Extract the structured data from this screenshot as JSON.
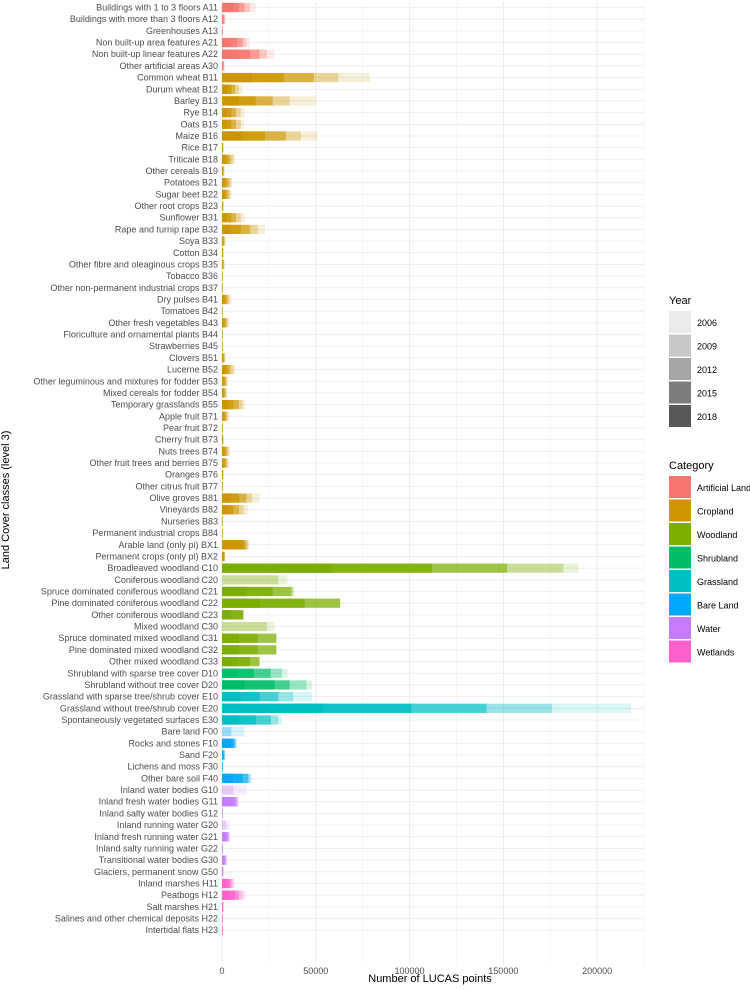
{
  "chart_data": {
    "type": "bar",
    "orientation": "horizontal",
    "stacking": "overlaid by year (cumulative)",
    "xlabel": "Number of LUCAS points",
    "ylabel": "Land Cover classes (level 3)",
    "xlim": [
      0,
      225000
    ],
    "xticks": [
      0,
      50000,
      100000,
      150000,
      200000
    ],
    "xtick_labels": [
      "0",
      "50000",
      "100000",
      "150000",
      "200000"
    ],
    "grid": true,
    "years": [
      "2006",
      "2009",
      "2012",
      "2015",
      "2018"
    ],
    "year_alphas": [
      0.15,
      0.3,
      0.55,
      0.75,
      1.0
    ],
    "legend_year_title": "Year",
    "legend_year_greys": [
      "#ebebeb",
      "#c8c8c8",
      "#a5a5a5",
      "#7c7c7c",
      "#595959"
    ],
    "legend_category_title": "Category",
    "categories_legend": [
      {
        "name": "Artificial Land",
        "color": "#F8766D"
      },
      {
        "name": "Cropland",
        "color": "#CD9600"
      },
      {
        "name": "Woodland",
        "color": "#7CAE00"
      },
      {
        "name": "Shrubland",
        "color": "#00BE67"
      },
      {
        "name": "Grassland",
        "color": "#00BFC4"
      },
      {
        "name": "Bare Land",
        "color": "#00A9FF"
      },
      {
        "name": "Water",
        "color": "#C77CFF"
      },
      {
        "name": "Wetlands",
        "color": "#FF61CC"
      }
    ],
    "series_note": "values per class = cumulative bar end for years [2018, 2015, 2012, 2009, 2006]",
    "classes": [
      {
        "label": "Buildings with 1 to 3 floors A11",
        "cat": "Artificial Land",
        "values": [
          6000,
          9000,
          12000,
          15000,
          18000
        ]
      },
      {
        "label": "Buildings with more than 3 floors A12",
        "cat": "Artificial Land",
        "values": [
          400,
          800,
          1200,
          1600,
          2000
        ]
      },
      {
        "label": "Greenhouses A13",
        "cat": "Artificial Land",
        "values": [
          100,
          200,
          300,
          400,
          500
        ]
      },
      {
        "label": "Non built-up area features A21",
        "cat": "Artificial Land",
        "values": [
          5000,
          8000,
          11000,
          13000,
          15000
        ]
      },
      {
        "label": "Non built-up linear features A22",
        "cat": "Artificial Land",
        "values": [
          9000,
          15000,
          20000,
          24000,
          28000
        ]
      },
      {
        "label": "Other artificial areas A30",
        "cat": "Artificial Land",
        "values": [
          300,
          600,
          900,
          1200,
          1500
        ]
      },
      {
        "label": "Common wheat B11",
        "cat": "Cropland",
        "values": [
          16000,
          33000,
          49000,
          62000,
          79000
        ]
      },
      {
        "label": "Durum wheat B12",
        "cat": "Cropland",
        "values": [
          3000,
          5000,
          7000,
          9000,
          11000
        ]
      },
      {
        "label": "Barley B13",
        "cat": "Cropland",
        "values": [
          9000,
          18000,
          27000,
          36000,
          50000
        ]
      },
      {
        "label": "Rye B14",
        "cat": "Cropland",
        "values": [
          2500,
          5000,
          7500,
          10000,
          12000
        ]
      },
      {
        "label": "Oats B15",
        "cat": "Cropland",
        "values": [
          2500,
          5000,
          7500,
          10000,
          12000
        ]
      },
      {
        "label": "Maize B16",
        "cat": "Cropland",
        "values": [
          11000,
          23000,
          34000,
          42000,
          51000
        ]
      },
      {
        "label": "Rice B17",
        "cat": "Cropland",
        "values": [
          200,
          400,
          600,
          800,
          1000
        ]
      },
      {
        "label": "Triticale B18",
        "cat": "Cropland",
        "values": [
          1500,
          3000,
          4500,
          6000,
          7000
        ]
      },
      {
        "label": "Other cereals B19",
        "cat": "Cropland",
        "values": [
          300,
          600,
          900,
          1200,
          1500
        ]
      },
      {
        "label": "Potatoes B21",
        "cat": "Cropland",
        "values": [
          1200,
          2400,
          3600,
          4800,
          5500
        ]
      },
      {
        "label": "Sugar beet B22",
        "cat": "Cropland",
        "values": [
          1100,
          2200,
          3300,
          4400,
          5000
        ]
      },
      {
        "label": "Other root crops B23",
        "cat": "Cropland",
        "values": [
          200,
          400,
          600,
          800,
          1000
        ]
      },
      {
        "label": "Sunflower B31",
        "cat": "Cropland",
        "values": [
          2500,
          5000,
          7500,
          10000,
          12000
        ]
      },
      {
        "label": "Rape and turnip rape B32",
        "cat": "Cropland",
        "values": [
          5000,
          10000,
          15000,
          19000,
          23000
        ]
      },
      {
        "label": "Soya B33",
        "cat": "Cropland",
        "values": [
          400,
          800,
          1200,
          1600,
          2000
        ]
      },
      {
        "label": "Cotton B34",
        "cat": "Cropland",
        "values": [
          200,
          400,
          600,
          800,
          1000
        ]
      },
      {
        "label": "Other fibre and oleaginous crops B35",
        "cat": "Cropland",
        "values": [
          300,
          600,
          900,
          1200,
          1500
        ]
      },
      {
        "label": "Tobacco B36",
        "cat": "Cropland",
        "values": [
          50,
          100,
          150,
          200,
          250
        ]
      },
      {
        "label": "Other non-permanent industrial crops B37",
        "cat": "Cropland",
        "values": [
          80,
          160,
          240,
          320,
          400
        ]
      },
      {
        "label": "Dry pulses B41",
        "cat": "Cropland",
        "values": [
          1000,
          2000,
          3000,
          4000,
          5000
        ]
      },
      {
        "label": "Tomatoes B42",
        "cat": "Cropland",
        "values": [
          80,
          160,
          240,
          320,
          400
        ]
      },
      {
        "label": "Other fresh vegetables B43",
        "cat": "Cropland",
        "values": [
          800,
          1600,
          2400,
          3200,
          4000
        ]
      },
      {
        "label": "Floriculture and ornamental plants B44",
        "cat": "Cropland",
        "values": [
          40,
          80,
          120,
          160,
          200
        ]
      },
      {
        "label": "Strawberries B45",
        "cat": "Cropland",
        "values": [
          40,
          80,
          120,
          160,
          200
        ]
      },
      {
        "label": "Clovers B51",
        "cat": "Cropland",
        "values": [
          400,
          800,
          1200,
          1600,
          2000
        ]
      },
      {
        "label": "Lucerne B52",
        "cat": "Cropland",
        "values": [
          1500,
          3000,
          4500,
          6000,
          7000
        ]
      },
      {
        "label": "Other leguminous and mixtures for fodder B53",
        "cat": "Cropland",
        "values": [
          700,
          1400,
          2100,
          2800,
          3500
        ]
      },
      {
        "label": "Mixed cereals for fodder B54",
        "cat": "Cropland",
        "values": [
          600,
          1200,
          1800,
          2400,
          3000
        ]
      },
      {
        "label": "Temporary grasslands B55",
        "cat": "Cropland",
        "values": [
          3000,
          6000,
          9000,
          11000,
          12500
        ]
      },
      {
        "label": "Apple fruit B71",
        "cat": "Cropland",
        "values": [
          800,
          1600,
          2400,
          3200,
          4000
        ]
      },
      {
        "label": "Pear fruit B72",
        "cat": "Cropland",
        "values": [
          100,
          200,
          300,
          400,
          500
        ]
      },
      {
        "label": "Cherry fruit B73",
        "cat": "Cropland",
        "values": [
          200,
          400,
          600,
          800,
          1000
        ]
      },
      {
        "label": "Nuts trees B74",
        "cat": "Cropland",
        "values": [
          900,
          1800,
          2700,
          3600,
          4500
        ]
      },
      {
        "label": "Other fruit trees and berries B75",
        "cat": "Cropland",
        "values": [
          800,
          1600,
          2400,
          3200,
          4000
        ]
      },
      {
        "label": "Oranges B76",
        "cat": "Cropland",
        "values": [
          200,
          400,
          600,
          800,
          1000
        ]
      },
      {
        "label": "Other citrus fruit B77",
        "cat": "Cropland",
        "values": [
          80,
          160,
          240,
          320,
          400
        ]
      },
      {
        "label": "Olive groves B81",
        "cat": "Cropland",
        "values": [
          5000,
          9000,
          13000,
          16000,
          20000
        ]
      },
      {
        "label": "Vineyards B82",
        "cat": "Cropland",
        "values": [
          3000,
          6000,
          9000,
          11500,
          14000
        ]
      },
      {
        "label": "Nurseries B83",
        "cat": "Cropland",
        "values": [
          40,
          80,
          120,
          160,
          200
        ]
      },
      {
        "label": "Permanent industrial crops B84",
        "cat": "Cropland",
        "values": [
          40,
          80,
          120,
          160,
          200
        ]
      },
      {
        "label": "Arable land (only pi) BX1",
        "cat": "Cropland",
        "values": [
          11000,
          12000,
          13000,
          14000,
          14500
        ]
      },
      {
        "label": "Permanent crops (only pi) BX2",
        "cat": "Cropland",
        "values": [
          1000,
          1200,
          1400,
          1600,
          1800
        ]
      },
      {
        "label": "Broadleaved woodland C10",
        "cat": "Woodland",
        "values": [
          59000,
          112000,
          152000,
          182000,
          190000
        ]
      },
      {
        "label": "Coniferous woodland C20",
        "cat": "Woodland",
        "values": [
          0,
          0,
          0,
          30000,
          35000
        ]
      },
      {
        "label": "Spruce dominated coniferous woodland C21",
        "cat": "Woodland",
        "values": [
          13000,
          27000,
          37000,
          38000,
          38500
        ]
      },
      {
        "label": "Pine dominated coniferous woodland C22",
        "cat": "Woodland",
        "values": [
          20000,
          44000,
          63000,
          63000,
          63000
        ]
      },
      {
        "label": "Other coniferous woodland C23",
        "cat": "Woodland",
        "values": [
          5000,
          11000,
          11500,
          11500,
          11500
        ]
      },
      {
        "label": "Mixed woodland C30",
        "cat": "Woodland",
        "values": [
          0,
          0,
          0,
          24000,
          28000
        ]
      },
      {
        "label": "Spruce dominated mixed woodland C31",
        "cat": "Woodland",
        "values": [
          9000,
          19000,
          29000,
          29000,
          29000
        ]
      },
      {
        "label": "Pine dominated mixed woodland C32",
        "cat": "Woodland",
        "values": [
          9000,
          19000,
          29000,
          29000,
          29000
        ]
      },
      {
        "label": "Other mixed woodland C33",
        "cat": "Woodland",
        "values": [
          8000,
          15000,
          20000,
          20000,
          20000
        ]
      },
      {
        "label": "Shrubland with sparse tree cover D10",
        "cat": "Shrubland",
        "values": [
          8000,
          17000,
          26000,
          32000,
          35000
        ]
      },
      {
        "label": "Shrubland without tree cover D20",
        "cat": "Shrubland",
        "values": [
          12000,
          28000,
          36000,
          45000,
          48000
        ]
      },
      {
        "label": "Grassland with sparse tree/shrub cover E10",
        "cat": "Grassland",
        "values": [
          10000,
          20000,
          30000,
          38000,
          48000
        ]
      },
      {
        "label": "Grassland without tree/shrub cover E20",
        "cat": "Grassland",
        "values": [
          54000,
          101000,
          141000,
          176000,
          218000
        ]
      },
      {
        "label": "Spontaneously vegetated surfaces E30",
        "cat": "Grassland",
        "values": [
          9000,
          18000,
          26000,
          30000,
          32000
        ]
      },
      {
        "label": "Bare land F00",
        "cat": "Bare Land",
        "values": [
          0,
          0,
          0,
          5000,
          12000
        ]
      },
      {
        "label": "Rocks and stones F10",
        "cat": "Bare Land",
        "values": [
          5000,
          6000,
          7000,
          7500,
          8000
        ]
      },
      {
        "label": "Sand F20",
        "cat": "Bare Land",
        "values": [
          400,
          800,
          1200,
          1600,
          2000
        ]
      },
      {
        "label": "Lichens and moss F30",
        "cat": "Bare Land",
        "values": [
          100,
          200,
          300,
          400,
          500
        ]
      },
      {
        "label": "Other bare soil F40",
        "cat": "Bare Land",
        "values": [
          6000,
          11000,
          14000,
          15000,
          16000
        ]
      },
      {
        "label": "Inland water bodies G10",
        "cat": "Water",
        "values": [
          0,
          0,
          0,
          6000,
          13000
        ]
      },
      {
        "label": "Inland fresh water bodies G11",
        "cat": "Water",
        "values": [
          5000,
          7000,
          8000,
          8500,
          9000
        ]
      },
      {
        "label": "Inland salty water bodies G12",
        "cat": "Water",
        "values": [
          40,
          80,
          120,
          160,
          200
        ]
      },
      {
        "label": "Inland running water G20",
        "cat": "Water",
        "values": [
          0,
          0,
          0,
          2000,
          4000
        ]
      },
      {
        "label": "Inland fresh running water G21",
        "cat": "Water",
        "values": [
          2000,
          3000,
          3500,
          4000,
          4200
        ]
      },
      {
        "label": "Inland salty running water G22",
        "cat": "Water",
        "values": [
          20,
          40,
          60,
          80,
          100
        ]
      },
      {
        "label": "Transitional water bodies G30",
        "cat": "Water",
        "values": [
          1000,
          1500,
          2000,
          2500,
          3000
        ]
      },
      {
        "label": "Glaciers, permanent snow G50",
        "cat": "Water",
        "values": [
          200,
          400,
          600,
          800,
          1000
        ]
      },
      {
        "label": "Inland marshes H11",
        "cat": "Wetlands",
        "values": [
          2000,
          4000,
          5000,
          6000,
          7000
        ]
      },
      {
        "label": "Peatbogs H12",
        "cat": "Wetlands",
        "values": [
          4000,
          7000,
          9000,
          11000,
          12500
        ]
      },
      {
        "label": "Salt marshes H21",
        "cat": "Wetlands",
        "values": [
          200,
          400,
          600,
          800,
          1000
        ]
      },
      {
        "label": "Salines and other chemical deposits H22",
        "cat": "Wetlands",
        "values": [
          40,
          80,
          120,
          160,
          200
        ]
      },
      {
        "label": "Intertidal flats H23",
        "cat": "Wetlands",
        "values": [
          100,
          200,
          300,
          400,
          500
        ]
      }
    ]
  }
}
